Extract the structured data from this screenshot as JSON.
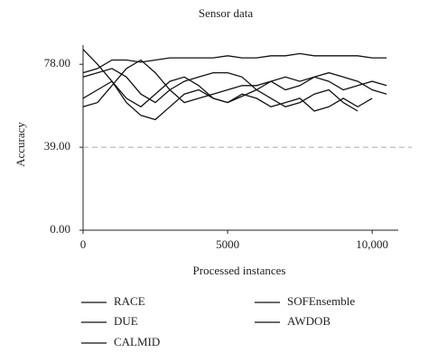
{
  "chart_data": {
    "type": "line",
    "title": "Sensor data",
    "x_label": "Processed instances",
    "y_label": "Accuracy",
    "x": [
      0,
      500,
      1000,
      1500,
      2000,
      2500,
      3000,
      3500,
      4000,
      4500,
      5000,
      5500,
      6000,
      6500,
      7000,
      7500,
      8000,
      8500,
      9000,
      9500,
      10000,
      10500
    ],
    "series": [
      {
        "name": "RACE",
        "color": "#111111",
        "values": [
          74,
          76,
          80,
          80,
          79,
          80,
          81,
          81,
          81,
          81,
          82,
          81,
          81,
          82,
          82,
          83,
          82,
          82,
          82,
          82,
          81,
          81
        ]
      },
      {
        "name": "DUE",
        "color": "#111111",
        "values": [
          85,
          78,
          70,
          62,
          58,
          64,
          70,
          72,
          68,
          62,
          60,
          63,
          66,
          62,
          58,
          60,
          64,
          66,
          60,
          56,
          null,
          null
        ]
      },
      {
        "name": "CALMID",
        "color": "#111111",
        "values": [
          58,
          60,
          68,
          76,
          80,
          74,
          66,
          60,
          62,
          64,
          66,
          68,
          68,
          70,
          66,
          68,
          72,
          70,
          66,
          68,
          70,
          68
        ]
      },
      {
        "name": "SOFEnsemble",
        "color": "#111111",
        "values": [
          72,
          74,
          76,
          72,
          64,
          60,
          66,
          70,
          72,
          74,
          74,
          72,
          66,
          70,
          72,
          70,
          72,
          74,
          72,
          70,
          66,
          64
        ]
      },
      {
        "name": "AWDOB",
        "color": "#111111",
        "values": [
          62,
          66,
          70,
          60,
          54,
          52,
          58,
          64,
          66,
          62,
          60,
          64,
          62,
          58,
          60,
          62,
          56,
          58,
          62,
          58,
          62,
          null
        ]
      }
    ],
    "xlim": [
      0,
      10900
    ],
    "ylim": [
      0,
      87
    ],
    "xticks": [
      0,
      5000,
      {
        "value": 10000,
        "label": "10,000"
      }
    ],
    "yticks": [
      {
        "value": 0,
        "label": "0.00"
      },
      {
        "value": 39,
        "label": "39.00"
      },
      {
        "value": 78,
        "label": "78.00"
      }
    ],
    "reference_line": 39
  }
}
